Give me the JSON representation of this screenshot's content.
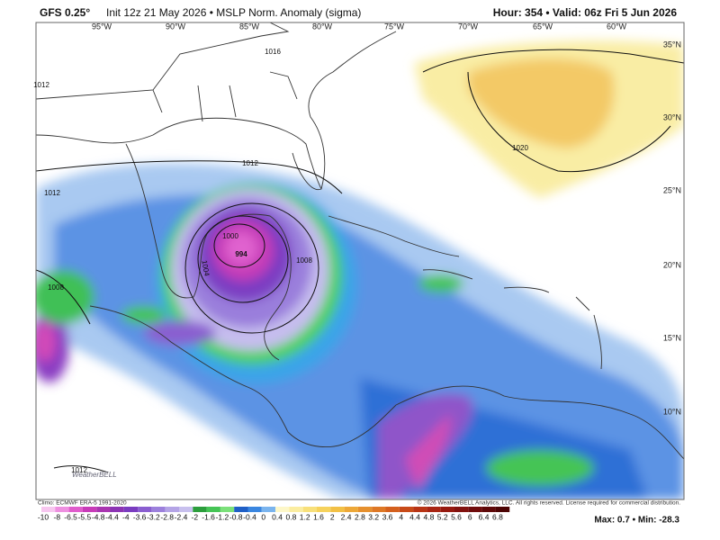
{
  "header": {
    "model": "GFS 0.25°",
    "title": "Init 12z 21 May 2026 • MSLP Norm. Anomaly (sigma)",
    "valid": "Hour: 354 • Valid: 06z Fri 5 Jun 2026"
  },
  "map": {
    "lon_labels": [
      "95°W",
      "90°W",
      "85°W",
      "80°W",
      "75°W",
      "70°W",
      "65°W",
      "60°W"
    ],
    "lat_labels": [
      "35°N",
      "30°N",
      "25°N",
      "20°N",
      "15°N",
      "10°N"
    ],
    "isobar_labels": [
      "1012",
      "1016",
      "1020",
      "1000",
      "994",
      "1004",
      "1008",
      "1008",
      "1012",
      "1012",
      "1012"
    ]
  },
  "logo": "WeatherBELL",
  "footer": {
    "climo": "Climo: ECMWF ERA-5 1991-2020",
    "copyright": "© 2026 WeatherBELL Analytics, LLC. All rights reserved. License required for commercial distribution."
  },
  "colorbar": {
    "ticks": [
      -10,
      -8,
      -6.5,
      -5.5,
      -4.8,
      -4.4,
      -4,
      -3.6,
      -3.2,
      -2.8,
      -2.4,
      -2,
      -1.6,
      -1.2,
      -0.8,
      -0.4,
      0,
      0.4,
      0.8,
      1.2,
      1.6,
      2,
      2.4,
      2.8,
      3.2,
      3.6,
      4,
      4.4,
      4.8,
      5.2,
      5.6,
      6,
      6.4,
      6.8
    ],
    "colors": [
      "#f7c6ef",
      "#ee8fe0",
      "#e05ccc",
      "#c83bb8",
      "#a935b0",
      "#8c34b4",
      "#7a3cc0",
      "#8a5ed0",
      "#9c80dc",
      "#b4a4e6",
      "#c8c0ee",
      "#2c9e3c",
      "#45c455",
      "#7be07a",
      "#1f5fc6",
      "#3a86e0",
      "#7ab4ee",
      "#fdf7c8",
      "#fbeda0",
      "#f8e07a",
      "#f6d25c",
      "#f2c045",
      "#eda838",
      "#e6902e",
      "#de7826",
      "#d4601e",
      "#c84a18",
      "#b83414",
      "#a82412",
      "#961a10",
      "#82120e",
      "#700c0c",
      "#5e0808",
      "#4c0404"
    ]
  },
  "stats": "Max: 0.7 • Min: -28.3"
}
